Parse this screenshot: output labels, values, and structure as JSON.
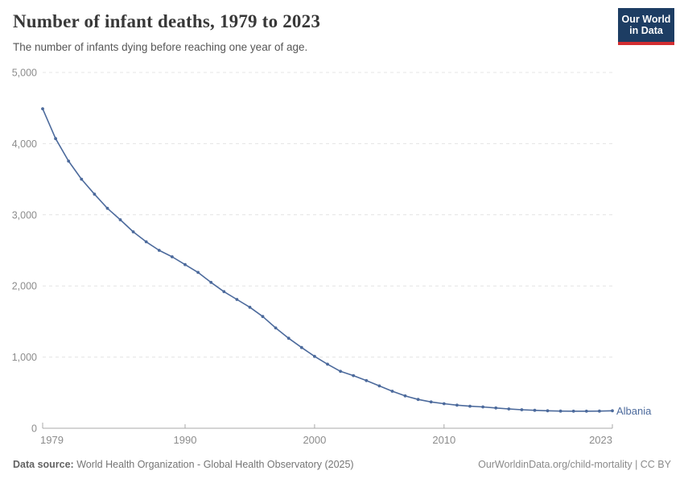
{
  "header": {
    "title": "Number of infant deaths, 1979 to 2023",
    "subtitle": "The number of infants dying before reaching one year of age.",
    "logo": {
      "line1": "Our World",
      "line2": "in Data",
      "bg_color": "#1d3d63",
      "stripe_color": "#d32e31",
      "text_color": "#ffffff"
    }
  },
  "chart_data": {
    "type": "line",
    "title": "Number of infant deaths, 1979 to 2023",
    "xlabel": "",
    "ylabel": "",
    "xlim": [
      1979,
      2023
    ],
    "ylim": [
      0,
      5000
    ],
    "grid": "horizontal dashed",
    "legend_position": "end-of-line-label",
    "x": [
      1979,
      1980,
      1981,
      1982,
      1983,
      1984,
      1985,
      1986,
      1987,
      1988,
      1989,
      1990,
      1991,
      1992,
      1993,
      1994,
      1995,
      1996,
      1997,
      1998,
      1999,
      2000,
      2001,
      2002,
      2003,
      2004,
      2005,
      2006,
      2007,
      2008,
      2009,
      2010,
      2011,
      2012,
      2013,
      2014,
      2015,
      2016,
      2017,
      2018,
      2019,
      2020,
      2021,
      2022,
      2023
    ],
    "series": [
      {
        "name": "Albania",
        "color": "#4c6a9c",
        "values": [
          4490,
          4070,
          3755,
          3500,
          3290,
          3090,
          2930,
          2760,
          2620,
          2500,
          2410,
          2300,
          2190,
          2050,
          1920,
          1810,
          1700,
          1570,
          1410,
          1265,
          1135,
          1010,
          900,
          800,
          740,
          670,
          595,
          520,
          455,
          405,
          370,
          345,
          325,
          310,
          300,
          285,
          272,
          260,
          252,
          246,
          241,
          240,
          240,
          241,
          245
        ]
      }
    ],
    "y_ticks": [
      {
        "value": 0,
        "label": "0"
      },
      {
        "value": 1000,
        "label": "1,000"
      },
      {
        "value": 2000,
        "label": "2,000"
      },
      {
        "value": 3000,
        "label": "3,000"
      },
      {
        "value": 4000,
        "label": "4,000"
      },
      {
        "value": 5000,
        "label": "5,000"
      }
    ],
    "x_ticks": [
      {
        "value": 1979,
        "label": "1979"
      },
      {
        "value": 1990,
        "label": "1990"
      },
      {
        "value": 2000,
        "label": "2000"
      },
      {
        "value": 2010,
        "label": "2010"
      },
      {
        "value": 2023,
        "label": "2023"
      }
    ],
    "axis_color": "#a8a8a8",
    "gridline_color": "#e4e4e4",
    "tick_label_color": "#8c8c8c"
  },
  "footer": {
    "source_label": "Data source:",
    "source_text": "World Health Organization - Global Health Observatory (2025)",
    "credit": "OurWorldinData.org/child-mortality | CC BY"
  }
}
